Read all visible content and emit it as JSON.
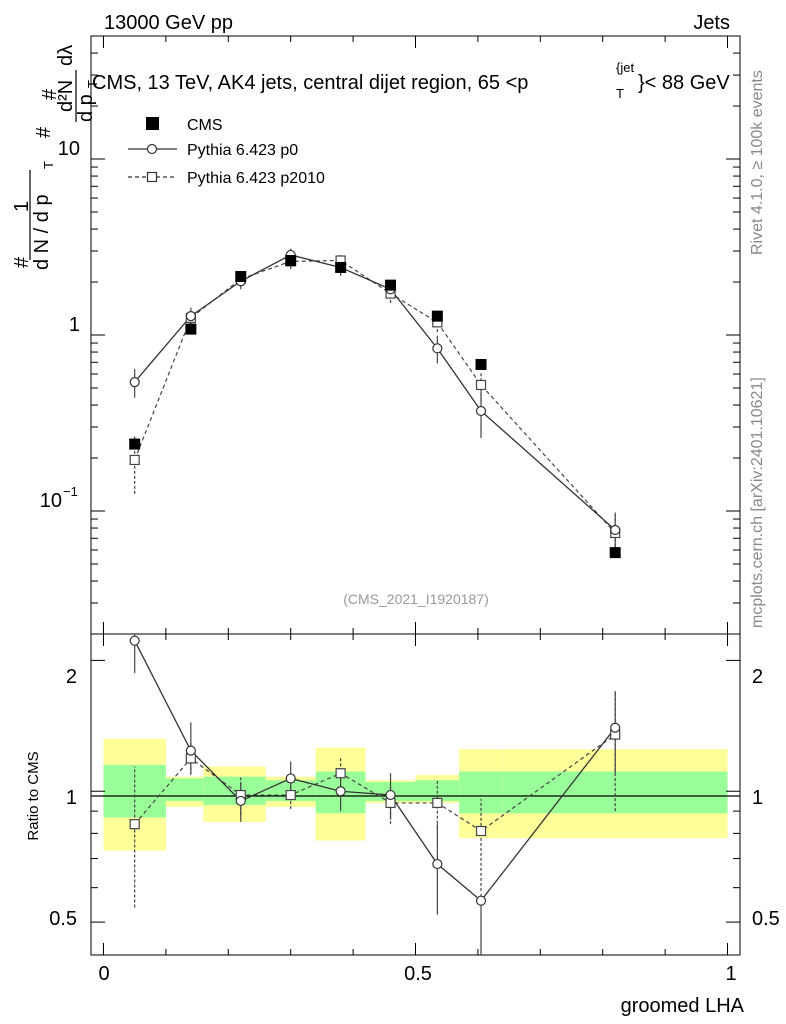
{
  "header": {
    "left": "13000 GeV pp",
    "right": "Jets"
  },
  "side": {
    "rivet": "Rivet 4.1.0, ≥ 100k events",
    "mcplots": "mcplots.cern.ch [arXiv:2401.10621]"
  },
  "chart_data": {
    "type": "scatter",
    "title": "CMS, 13 TeV, AK4 jets, central dijet region, 65 <p_T^{jet}< 88 GeV",
    "title_parts": {
      "main": "CMS, 13 TeV, AK4 jets, central dijet region, 65 <p",
      "sup": "{jet",
      "sub": "T",
      "tail": "}< 88 GeV"
    },
    "xlabel": "groomed LHA",
    "ylabel_upper": "1/N dN/dp_T d2N/dp_T dlambda",
    "ylabel_parts": {
      "frac1_num": "1",
      "frac1_den": "d N / d p",
      "frac1_sub": "T",
      "frac2_num": "d²N",
      "frac2_den": "d p",
      "frac2_sub": "T",
      "frac2_tail": "dλ",
      "hash": "#"
    },
    "ylabel_lower": "Ratio to CMS",
    "analysis_id": "(CMS_2021_I1920187)",
    "xlim": [
      -0.02,
      1.02
    ],
    "upper_ylim": [
      0.02,
      50
    ],
    "upper_yscale": "log",
    "lower_ylim": [
      0.42,
      2.3
    ],
    "lower_yscale": "log",
    "x_ticks": [
      0,
      0.5,
      1
    ],
    "x_tick_labels": [
      "0",
      "0.5",
      "1"
    ],
    "upper_tick_labels": {
      "ten": "10",
      "one": "1",
      "tenth_base": "10",
      "tenth_exp": "−1"
    },
    "lower_tick_labels": [
      "2",
      "1",
      "0.5"
    ],
    "x": [
      0.05,
      0.14,
      0.22,
      0.3,
      0.38,
      0.46,
      0.535,
      0.605,
      0.82
    ],
    "bin_edges": [
      0,
      0.1,
      0.16,
      0.26,
      0.34,
      0.42,
      0.5,
      0.57,
      0.64,
      1.0
    ],
    "legend": [
      {
        "name": "CMS",
        "marker": "filled-square"
      },
      {
        "name": "Pythia 6.423 p0",
        "marker": "open-circle",
        "line": "solid"
      },
      {
        "name": "Pythia 6.423 p2010",
        "marker": "open-square",
        "line": "dashed"
      }
    ],
    "series": [
      {
        "name": "CMS",
        "values": [
          0.24,
          1.08,
          2.15,
          2.65,
          2.42,
          1.92,
          1.28,
          0.68,
          0.058
        ],
        "err": [
          0.02,
          0.05,
          0.1,
          0.1,
          0.1,
          0.08,
          0.06,
          0.04,
          0.005
        ]
      },
      {
        "name": "Pythia 6.423 p0",
        "values": [
          0.54,
          1.28,
          2.02,
          2.85,
          2.42,
          1.82,
          0.84,
          0.37,
          0.078
        ],
        "err": [
          0.1,
          0.15,
          0.2,
          0.25,
          0.25,
          0.2,
          0.15,
          0.11,
          0.02
        ]
      },
      {
        "name": "Pythia 6.423 p2010",
        "values": [
          0.195,
          1.25,
          2.08,
          2.62,
          2.65,
          1.72,
          1.18,
          0.52,
          0.075
        ],
        "err": [
          0.07,
          0.12,
          0.2,
          0.25,
          0.25,
          0.2,
          0.14,
          0.1,
          0.02
        ]
      }
    ],
    "ratio_series": [
      {
        "name": "Pythia 6.423 p0",
        "values": [
          2.22,
          1.24,
          0.95,
          1.07,
          1.0,
          0.98,
          0.68,
          0.56,
          1.4
        ],
        "err_low": [
          0.35,
          0.14,
          0.1,
          0.1,
          0.1,
          0.12,
          0.16,
          0.2,
          0.3
        ],
        "err_high": [
          0.35,
          0.2,
          0.1,
          0.1,
          0.1,
          0.12,
          0.16,
          0.02,
          0.3
        ]
      },
      {
        "name": "Pythia 6.423 p2010",
        "values": [
          0.84,
          1.19,
          0.98,
          0.98,
          1.1,
          0.94,
          0.94,
          0.81,
          1.35
        ],
        "err_low": [
          0.3,
          0.1,
          0.1,
          0.07,
          0.1,
          0.1,
          0.12,
          0.22,
          0.45
        ],
        "err_high": [
          0.3,
          0.1,
          0.1,
          0.07,
          0.1,
          0.1,
          0.12,
          0.15,
          0.35
        ]
      }
    ],
    "bands": {
      "green_low": [
        0.87,
        0.95,
        0.93,
        0.95,
        0.89,
        0.95,
        0.95,
        0.89,
        0.89
      ],
      "green_high": [
        1.15,
        1.07,
        1.08,
        1.06,
        1.11,
        1.05,
        1.06,
        1.11,
        1.11
      ],
      "yellow_low": [
        0.73,
        0.92,
        0.85,
        0.92,
        0.77,
        0.94,
        0.94,
        0.78,
        0.78
      ],
      "yellow_high": [
        1.32,
        1.08,
        1.14,
        1.08,
        1.26,
        1.06,
        1.09,
        1.25,
        1.25
      ]
    },
    "colors": {
      "data": "#000000",
      "mc": "#555555",
      "green": "#99ff99",
      "yellow": "#ffff99"
    }
  }
}
